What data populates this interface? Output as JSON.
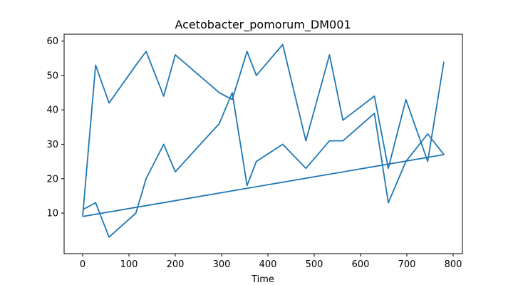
{
  "chart_data": {
    "type": "line",
    "title": "Acetobacter_pomorum_DM001",
    "xlabel": "Time",
    "ylabel": "",
    "xlim": [
      -40,
      820
    ],
    "ylim": [
      -1.8,
      62
    ],
    "x_ticks": [
      0,
      100,
      200,
      300,
      400,
      500,
      600,
      700,
      800
    ],
    "y_ticks": [
      10,
      20,
      30,
      40,
      50,
      60
    ],
    "grid": false,
    "legend": false,
    "colors": {
      "line": "#1f77b4",
      "axes": "#000000",
      "background": "#ffffff"
    },
    "series": [
      {
        "x": [
          0,
          28,
          57,
          115,
          137,
          175,
          200,
          295,
          323,
          355,
          375,
          432,
          482,
          533,
          562,
          630,
          660,
          698,
          745,
          780,
          0
        ],
        "y": [
          11,
          13,
          3,
          10,
          20,
          30,
          22,
          36,
          45,
          18,
          25,
          30,
          23,
          31,
          31,
          39,
          13,
          25,
          33,
          27,
          9
        ]
      },
      {
        "x": [
          0,
          28,
          57,
          115,
          137,
          175,
          200,
          295,
          323,
          355,
          375,
          432,
          482,
          533,
          562,
          630,
          660,
          698,
          745,
          780
        ],
        "y": [
          9,
          53,
          42,
          53,
          57,
          44,
          56,
          45,
          43,
          57,
          50,
          59,
          31,
          56,
          37,
          44,
          23,
          43,
          25,
          54
        ]
      }
    ]
  }
}
